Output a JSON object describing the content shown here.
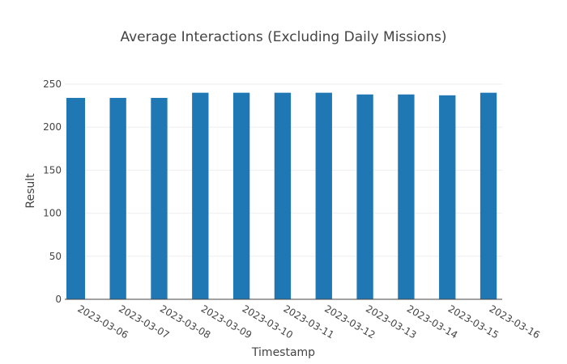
{
  "chart_data": {
    "type": "bar",
    "title": "Average Interactions (Excluding Daily Missions)",
    "xlabel": "Timestamp",
    "ylabel": "Result",
    "ylim": [
      0,
      250
    ],
    "yticks": [
      0,
      50,
      100,
      150,
      200,
      250
    ],
    "xlim": [
      "2023-03-05T17:00",
      "2023-03-16T08:00"
    ],
    "x_tick_labels": [
      "2023-03-06",
      "2023-03-07",
      "2023-03-08",
      "2023-03-09",
      "2023-03-10",
      "2023-03-11",
      "2023-03-12",
      "2023-03-13",
      "2023-03-14",
      "2023-03-15",
      "2023-03-16"
    ],
    "bars": [
      {
        "x": "2023-03-05T17:00",
        "value": 234
      },
      {
        "x": "2023-03-06T00:00",
        "value": 234
      },
      {
        "x": "2023-03-07T00:00",
        "value": 234
      },
      {
        "x": "2023-03-08T00:00",
        "value": 234
      },
      {
        "x": "2023-03-09T00:00",
        "value": 240
      },
      {
        "x": "2023-03-10T00:00",
        "value": 240
      },
      {
        "x": "2023-03-11T00:00",
        "value": 240
      },
      {
        "x": "2023-03-12T00:00",
        "value": 240
      },
      {
        "x": "2023-03-13T00:00",
        "value": 238
      },
      {
        "x": "2023-03-14T00:00",
        "value": 238
      },
      {
        "x": "2023-03-15T00:00",
        "value": 237
      },
      {
        "x": "2023-03-16T00:00",
        "value": 240
      }
    ],
    "bar_color": "#1f77b4",
    "grid": true,
    "legend": false
  }
}
